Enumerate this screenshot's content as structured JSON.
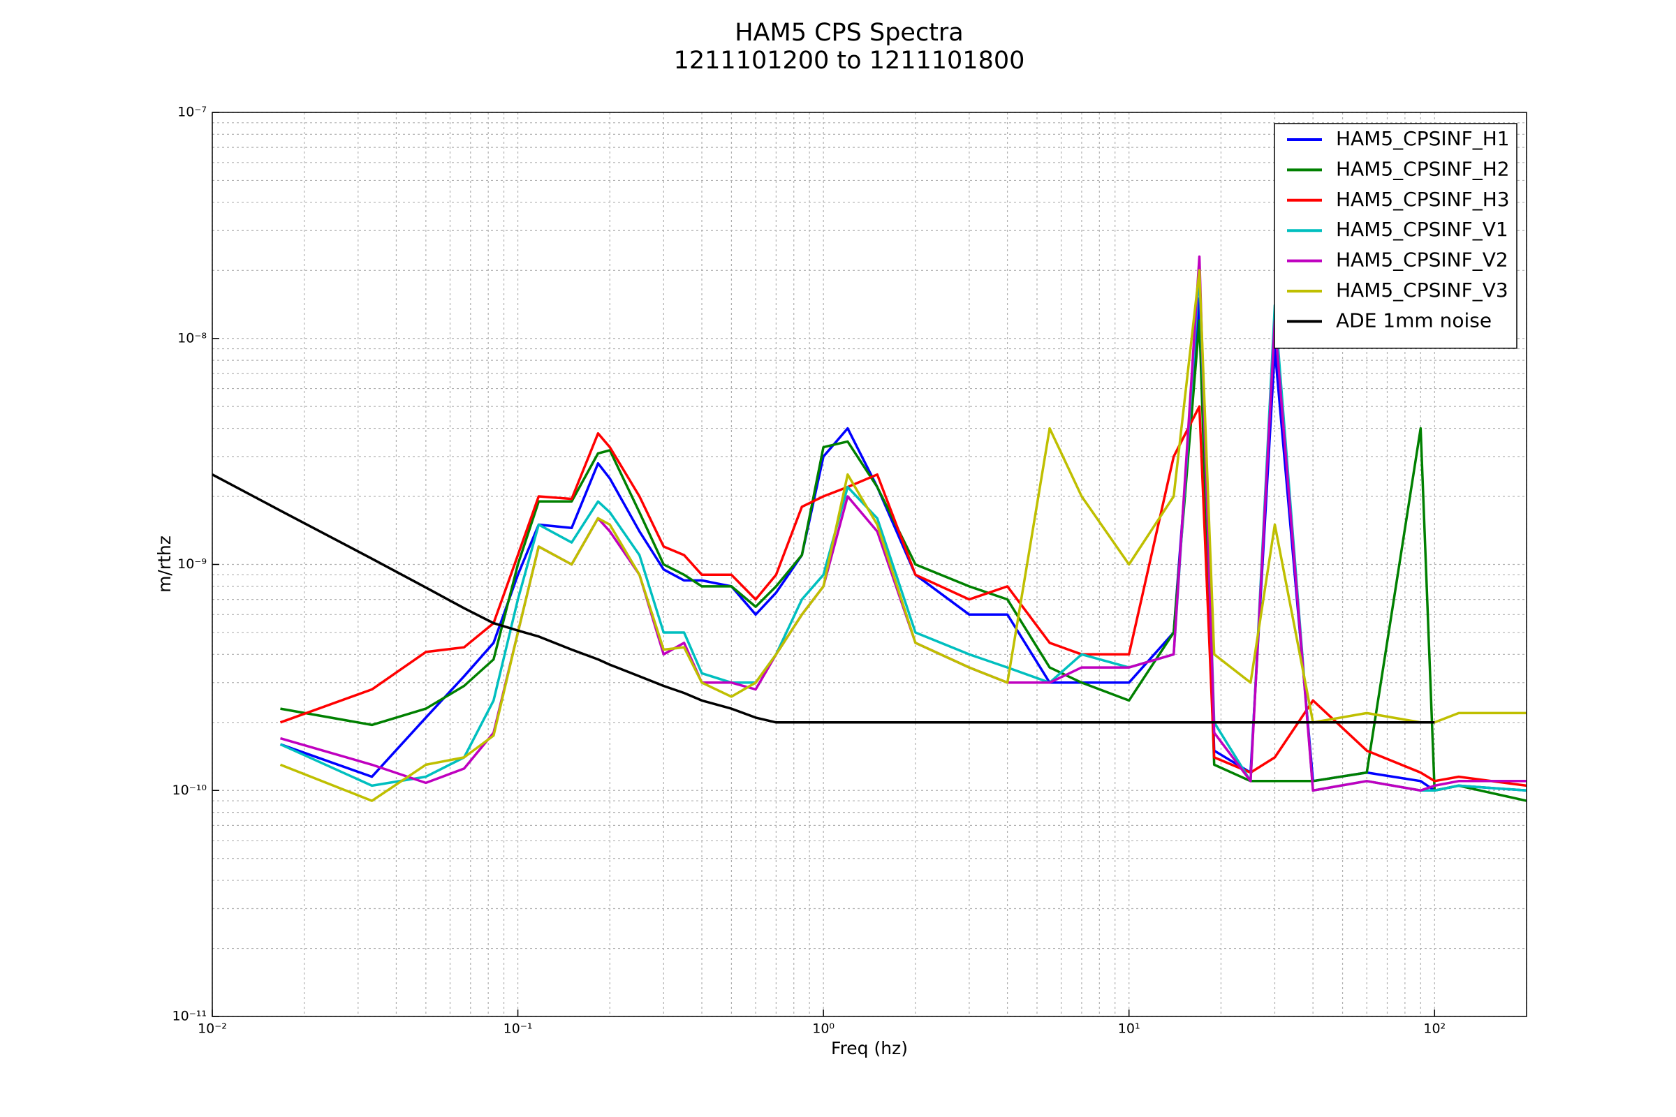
{
  "chart_data": {
    "type": "line",
    "title": "HAM5 CPS Spectra",
    "subtitle": "1211101200 to 1211101800",
    "x_label": "Freq (hz)",
    "y_label": "m/rthz",
    "log_x": true,
    "log_y": true,
    "grid": true,
    "legend": "upper right",
    "xlim": [
      0.01,
      200
    ],
    "ylim": [
      1e-11,
      1e-07
    ],
    "xticks": [
      {
        "value": 0.01,
        "label": "10⁻²"
      },
      {
        "value": 0.1,
        "label": "10⁻¹"
      },
      {
        "value": 1,
        "label": "10⁰"
      },
      {
        "value": 10,
        "label": "10¹"
      },
      {
        "value": 100,
        "label": "10²"
      }
    ],
    "yticks": [
      {
        "value": 1e-11,
        "label": "10⁻¹¹"
      },
      {
        "value": 1e-10,
        "label": "10⁻¹⁰"
      },
      {
        "value": 1e-09,
        "label": "10⁻⁹"
      },
      {
        "value": 1e-08,
        "label": "10⁻⁸"
      },
      {
        "value": 1e-07,
        "label": "10⁻⁷"
      }
    ],
    "x": [
      0.01,
      0.0167,
      0.0333,
      0.05,
      0.0667,
      0.0833,
      0.1,
      0.117,
      0.15,
      0.183,
      0.2,
      0.25,
      0.3,
      0.35,
      0.4,
      0.5,
      0.6,
      0.7,
      0.85,
      1,
      1.2,
      1.5,
      2,
      3,
      4,
      5.5,
      7,
      10,
      14,
      17,
      19,
      25,
      30,
      40,
      60,
      90,
      100,
      120,
      200
    ],
    "series": [
      {
        "name": "HAM5_CPSINF_H1",
        "color": "#0000ff",
        "values": [
          null,
          1.6e-10,
          1.15e-10,
          2.1e-10,
          3.2e-10,
          4.5e-10,
          9e-10,
          1.5e-09,
          1.45e-09,
          2.8e-09,
          2.4e-09,
          1.4e-09,
          9.5e-10,
          8.5e-10,
          8.5e-10,
          8e-10,
          6e-10,
          7.5e-10,
          1.1e-09,
          3e-09,
          4e-09,
          2.2e-09,
          9e-10,
          6e-10,
          6e-10,
          3e-10,
          3e-10,
          3e-10,
          5e-10,
          1.5e-08,
          1.5e-10,
          1.2e-10,
          9e-09,
          1.1e-10,
          1.2e-10,
          1.1e-10,
          1e-10,
          1.05e-10,
          1e-10
        ]
      },
      {
        "name": "HAM5_CPSINF_H2",
        "color": "#008000",
        "values": [
          null,
          2.3e-10,
          1.95e-10,
          2.3e-10,
          2.9e-10,
          3.8e-10,
          1e-09,
          1.9e-09,
          1.9e-09,
          3.1e-09,
          3.2e-09,
          1.7e-09,
          1e-09,
          9e-10,
          8e-10,
          8e-10,
          6.5e-10,
          8e-10,
          1.1e-09,
          3.3e-09,
          3.5e-09,
          2.2e-09,
          1e-09,
          8e-10,
          7e-10,
          3.5e-10,
          3e-10,
          2.5e-10,
          5e-10,
          1.2e-08,
          1.3e-10,
          1.1e-10,
          1.1e-10,
          1.1e-10,
          1.2e-10,
          4e-09,
          1e-10,
          1.05e-10,
          9e-11
        ]
      },
      {
        "name": "HAM5_CPSINF_H3",
        "color": "#ff0000",
        "values": [
          null,
          2e-10,
          2.8e-10,
          4.1e-10,
          4.3e-10,
          5.5e-10,
          1.1e-09,
          2e-09,
          1.95e-09,
          3.8e-09,
          3.3e-09,
          2e-09,
          1.2e-09,
          1.1e-09,
          9e-10,
          9e-10,
          7e-10,
          9e-10,
          1.8e-09,
          2e-09,
          2.2e-09,
          2.5e-09,
          9e-10,
          7e-10,
          8e-10,
          4.5e-10,
          4e-10,
          4e-10,
          3e-09,
          5e-09,
          1.4e-10,
          1.2e-10,
          1.4e-10,
          2.5e-10,
          1.5e-10,
          1.2e-10,
          1.1e-10,
          1.15e-10,
          1.05e-10
        ]
      },
      {
        "name": "HAM5_CPSINF_V1",
        "color": "#00bfbf",
        "values": [
          null,
          1.6e-10,
          1.05e-10,
          1.15e-10,
          1.4e-10,
          2.5e-10,
          7e-10,
          1.5e-09,
          1.25e-09,
          1.9e-09,
          1.7e-09,
          1.1e-09,
          5e-10,
          5e-10,
          3.3e-10,
          3e-10,
          3e-10,
          4e-10,
          7e-10,
          9e-10,
          2.2e-09,
          1.6e-09,
          5e-10,
          4e-10,
          3.5e-10,
          3e-10,
          4e-10,
          3.5e-10,
          4e-10,
          2e-08,
          2e-10,
          1.1e-10,
          1.4e-08,
          1e-10,
          1.1e-10,
          1e-10,
          1e-10,
          1.05e-10,
          1e-10
        ]
      },
      {
        "name": "HAM5_CPSINF_V2",
        "color": "#bf00bf",
        "values": [
          null,
          1.7e-10,
          1.3e-10,
          1.08e-10,
          1.25e-10,
          1.8e-10,
          5e-10,
          1.2e-09,
          1e-09,
          1.6e-09,
          1.4e-09,
          9e-10,
          4e-10,
          4.5e-10,
          3e-10,
          3e-10,
          2.8e-10,
          4e-10,
          6e-10,
          8e-10,
          2e-09,
          1.4e-09,
          4.5e-10,
          3.5e-10,
          3e-10,
          3e-10,
          3.5e-10,
          3.5e-10,
          4e-10,
          2.3e-08,
          1.8e-10,
          1.1e-10,
          1.2e-08,
          1e-10,
          1.1e-10,
          1e-10,
          1.05e-10,
          1.1e-10,
          1.1e-10
        ]
      },
      {
        "name": "HAM5_CPSINF_V3",
        "color": "#bfbf00",
        "values": [
          null,
          1.3e-10,
          9e-11,
          1.3e-10,
          1.4e-10,
          1.75e-10,
          5e-10,
          1.2e-09,
          1e-09,
          1.6e-09,
          1.5e-09,
          9e-10,
          4.2e-10,
          4.3e-10,
          3e-10,
          2.6e-10,
          3e-10,
          4e-10,
          6e-10,
          8e-10,
          2.5e-09,
          1.5e-09,
          4.5e-10,
          3.5e-10,
          3e-10,
          4e-09,
          2e-09,
          1e-09,
          2e-09,
          2e-08,
          4e-10,
          3e-10,
          1.5e-09,
          2e-10,
          2.2e-10,
          2e-10,
          2e-10,
          2.2e-10,
          2.2e-10
        ]
      },
      {
        "name": "ADE 1mm noise",
        "color": "#000000",
        "values": [
          2.5e-09,
          1.73e-09,
          1.06e-09,
          7.9e-10,
          6.4e-10,
          5.5e-10,
          5.1e-10,
          4.8e-10,
          4.2e-10,
          3.8e-10,
          3.6e-10,
          3.2e-10,
          2.9e-10,
          2.7e-10,
          2.5e-10,
          2.3e-10,
          2.1e-10,
          2e-10,
          2e-10,
          2e-10,
          2e-10,
          2e-10,
          2e-10,
          2e-10,
          2e-10,
          2e-10,
          2e-10,
          2e-10,
          2e-10,
          2e-10,
          2e-10,
          2e-10,
          2e-10,
          2e-10,
          2e-10,
          2e-10,
          2e-10,
          null,
          null
        ]
      }
    ]
  }
}
